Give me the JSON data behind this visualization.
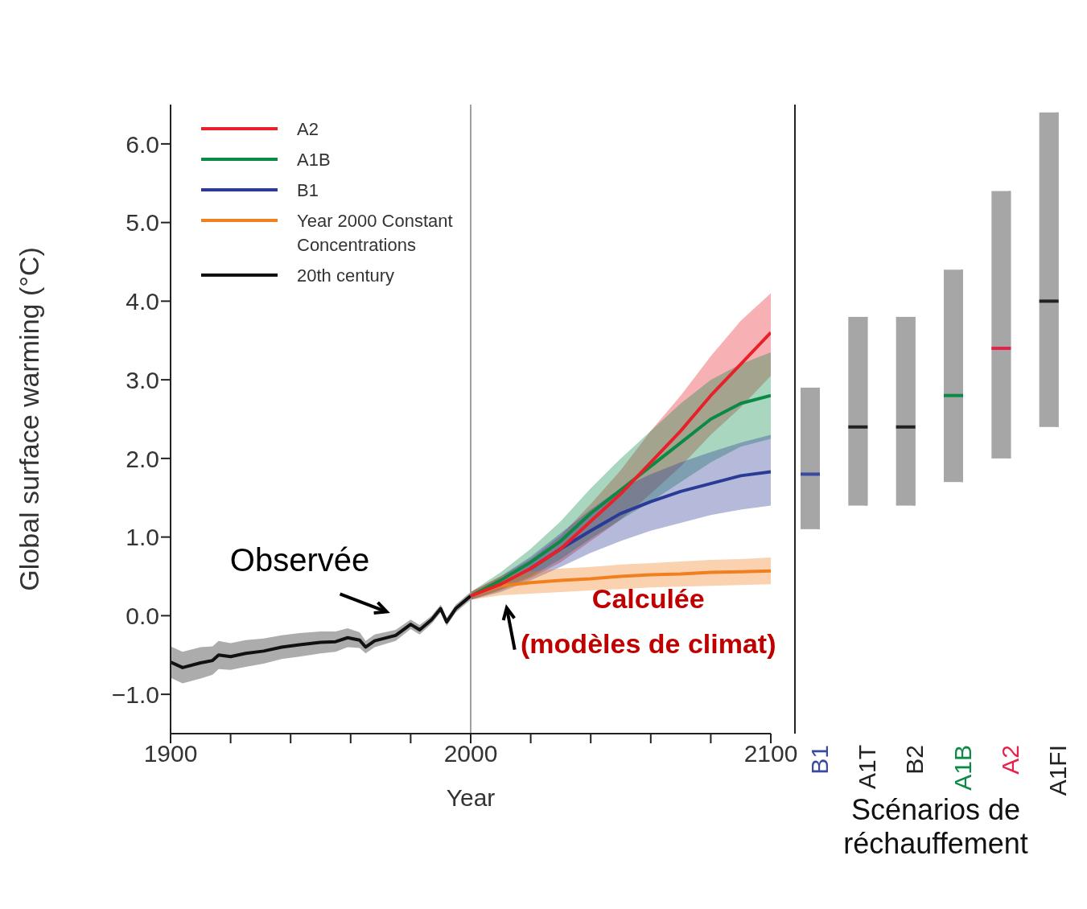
{
  "chart_data": [
    {
      "type": "line",
      "xlabel": "Year",
      "ylabel": "Global surface warming (°C)",
      "xlim": [
        1900,
        2100
      ],
      "ylim": [
        -1.5,
        6.5
      ],
      "xticks": [
        1900,
        {
          "value": 1920,
          "label": null
        },
        {
          "value": 1940,
          "label": null
        },
        {
          "value": 1960,
          "label": null
        },
        {
          "value": 1980,
          "label": null
        },
        2000,
        {
          "value": 2020,
          "label": null
        },
        {
          "value": 2040,
          "label": null
        },
        {
          "value": 2060,
          "label": null
        },
        {
          "value": 2080,
          "label": null
        },
        2100
      ],
      "yticks": [
        {
          "value": -1,
          "label": "−1.0"
        },
        {
          "value": 0,
          "label": "0.0"
        },
        {
          "value": 1,
          "label": "1.0"
        },
        {
          "value": 2,
          "label": "2.0"
        },
        {
          "value": 3,
          "label": "3.0"
        },
        {
          "value": 4,
          "label": "4.0"
        },
        {
          "value": 5,
          "label": "5.0"
        },
        {
          "value": 6,
          "label": "6.0"
        }
      ],
      "legend": "top left",
      "marker": "none",
      "line_style": "solid",
      "ref_lines": [
        {
          "axis": "x",
          "value": 2000,
          "color": "#a0a0a0"
        }
      ],
      "annotations": [
        "Observée",
        "Calculée\n(modèles de climat)"
      ],
      "series": [
        {
          "name": "A2",
          "color": "#e8202a",
          "x": [
            2000,
            2010,
            2020,
            2030,
            2040,
            2050,
            2060,
            2070,
            2080,
            2090,
            2100
          ],
          "values": [
            0.25,
            0.4,
            0.6,
            0.85,
            1.2,
            1.55,
            1.95,
            2.35,
            2.8,
            3.2,
            3.6
          ],
          "lower": [
            0.2,
            0.32,
            0.48,
            0.68,
            0.95,
            1.22,
            1.55,
            1.9,
            2.3,
            2.65,
            3.05
          ],
          "upper": [
            0.3,
            0.5,
            0.72,
            1.02,
            1.42,
            1.85,
            2.35,
            2.8,
            3.3,
            3.75,
            4.1
          ]
        },
        {
          "name": "A1B",
          "color": "#0a8a45",
          "x": [
            2000,
            2010,
            2020,
            2030,
            2040,
            2050,
            2060,
            2070,
            2080,
            2090,
            2100
          ],
          "values": [
            0.25,
            0.45,
            0.68,
            0.95,
            1.3,
            1.6,
            1.9,
            2.2,
            2.5,
            2.7,
            2.8
          ],
          "lower": [
            0.2,
            0.33,
            0.5,
            0.72,
            0.98,
            1.22,
            1.45,
            1.7,
            1.95,
            2.15,
            2.25
          ],
          "upper": [
            0.3,
            0.55,
            0.85,
            1.2,
            1.62,
            2.0,
            2.35,
            2.7,
            3.0,
            3.2,
            3.35
          ]
        },
        {
          "name": "B1",
          "color": "#2b3a96",
          "x": [
            2000,
            2010,
            2020,
            2030,
            2040,
            2050,
            2060,
            2070,
            2080,
            2090,
            2100
          ],
          "values": [
            null,
            null,
            0.6,
            0.85,
            1.08,
            1.3,
            1.45,
            1.58,
            1.68,
            1.78,
            1.83
          ],
          "lower": [
            0.2,
            0.3,
            0.45,
            0.62,
            0.8,
            0.95,
            1.08,
            1.18,
            1.28,
            1.35,
            1.4
          ],
          "upper": [
            0.3,
            0.5,
            0.75,
            1.05,
            1.35,
            1.62,
            1.8,
            1.95,
            2.08,
            2.2,
            2.3
          ]
        },
        {
          "name": "Year 2000 Constant Concentrations",
          "color": "#f07f1e",
          "x": [
            2000,
            2010,
            2020,
            2030,
            2040,
            2050,
            2060,
            2070,
            2080,
            2090,
            2100
          ],
          "values": [
            0.25,
            0.38,
            0.42,
            0.45,
            0.47,
            0.5,
            0.52,
            0.53,
            0.55,
            0.56,
            0.57
          ],
          "lower": [
            0.2,
            0.26,
            0.28,
            0.3,
            0.32,
            0.34,
            0.36,
            0.37,
            0.38,
            0.39,
            0.4
          ],
          "upper": [
            0.3,
            0.5,
            0.56,
            0.6,
            0.62,
            0.65,
            0.67,
            0.69,
            0.71,
            0.72,
            0.74
          ]
        },
        {
          "name": "20th century",
          "color": "#111111",
          "x": [
            1900,
            1904,
            1910,
            1914,
            1916,
            1920,
            1925,
            1931,
            1937,
            1943,
            1950,
            1955,
            1959,
            1963,
            1965,
            1968,
            1975,
            1980,
            1983,
            1987,
            1990,
            1992,
            1995,
            1999,
            2000
          ],
          "values": [
            -0.59,
            -0.66,
            -0.6,
            -0.57,
            -0.5,
            -0.52,
            -0.48,
            -0.45,
            -0.4,
            -0.37,
            -0.34,
            -0.33,
            -0.28,
            -0.31,
            -0.4,
            -0.32,
            -0.25,
            -0.11,
            -0.18,
            -0.05,
            0.09,
            -0.08,
            0.09,
            0.22,
            0.25
          ],
          "lower": [
            -0.79,
            -0.86,
            -0.8,
            -0.75,
            -0.68,
            -0.69,
            -0.65,
            -0.61,
            -0.55,
            -0.52,
            -0.48,
            -0.46,
            -0.4,
            -0.41,
            -0.48,
            -0.4,
            -0.32,
            -0.17,
            -0.24,
            -0.1,
            0.04,
            -0.13,
            0.04,
            0.17,
            0.2
          ],
          "upper": [
            -0.39,
            -0.46,
            -0.4,
            -0.39,
            -0.32,
            -0.35,
            -0.31,
            -0.29,
            -0.25,
            -0.22,
            -0.2,
            -0.2,
            -0.16,
            -0.21,
            -0.32,
            -0.24,
            -0.18,
            -0.05,
            -0.12,
            0.0,
            0.14,
            -0.03,
            0.14,
            0.27,
            0.3
          ]
        }
      ]
    },
    {
      "type": "box",
      "xlabel": "Scénarios de réchauffement",
      "categories": [
        "B1",
        "A1T",
        "B2",
        "A1B",
        "A2",
        "A1FI"
      ],
      "ylim": [
        -1.5,
        6.5
      ],
      "tick_labels": "x",
      "colors": [
        "#3a4aa0",
        "#222222",
        "#222222",
        "#0a8a45",
        "#e8204a",
        "#222222"
      ],
      "series": [
        {
          "color": "#a6a6a6",
          "boxes": [
            {
              "low": 1.1,
              "q1": 1.1,
              "median": 1.8,
              "q3": 2.9,
              "high": 2.9
            },
            {
              "low": 1.4,
              "q1": 1.4,
              "median": 2.4,
              "q3": 3.8,
              "high": 3.8
            },
            {
              "low": 1.4,
              "q1": 1.4,
              "median": 2.4,
              "q3": 3.8,
              "high": 3.8
            },
            {
              "low": 1.7,
              "q1": 1.7,
              "median": 2.8,
              "q3": 4.4,
              "high": 4.4
            },
            {
              "low": 2.0,
              "q1": 2.0,
              "median": 3.4,
              "q3": 5.4,
              "high": 5.4
            },
            {
              "low": 2.4,
              "q1": 2.4,
              "median": 4.0,
              "q3": 6.4,
              "high": 6.4
            }
          ]
        }
      ]
    }
  ]
}
